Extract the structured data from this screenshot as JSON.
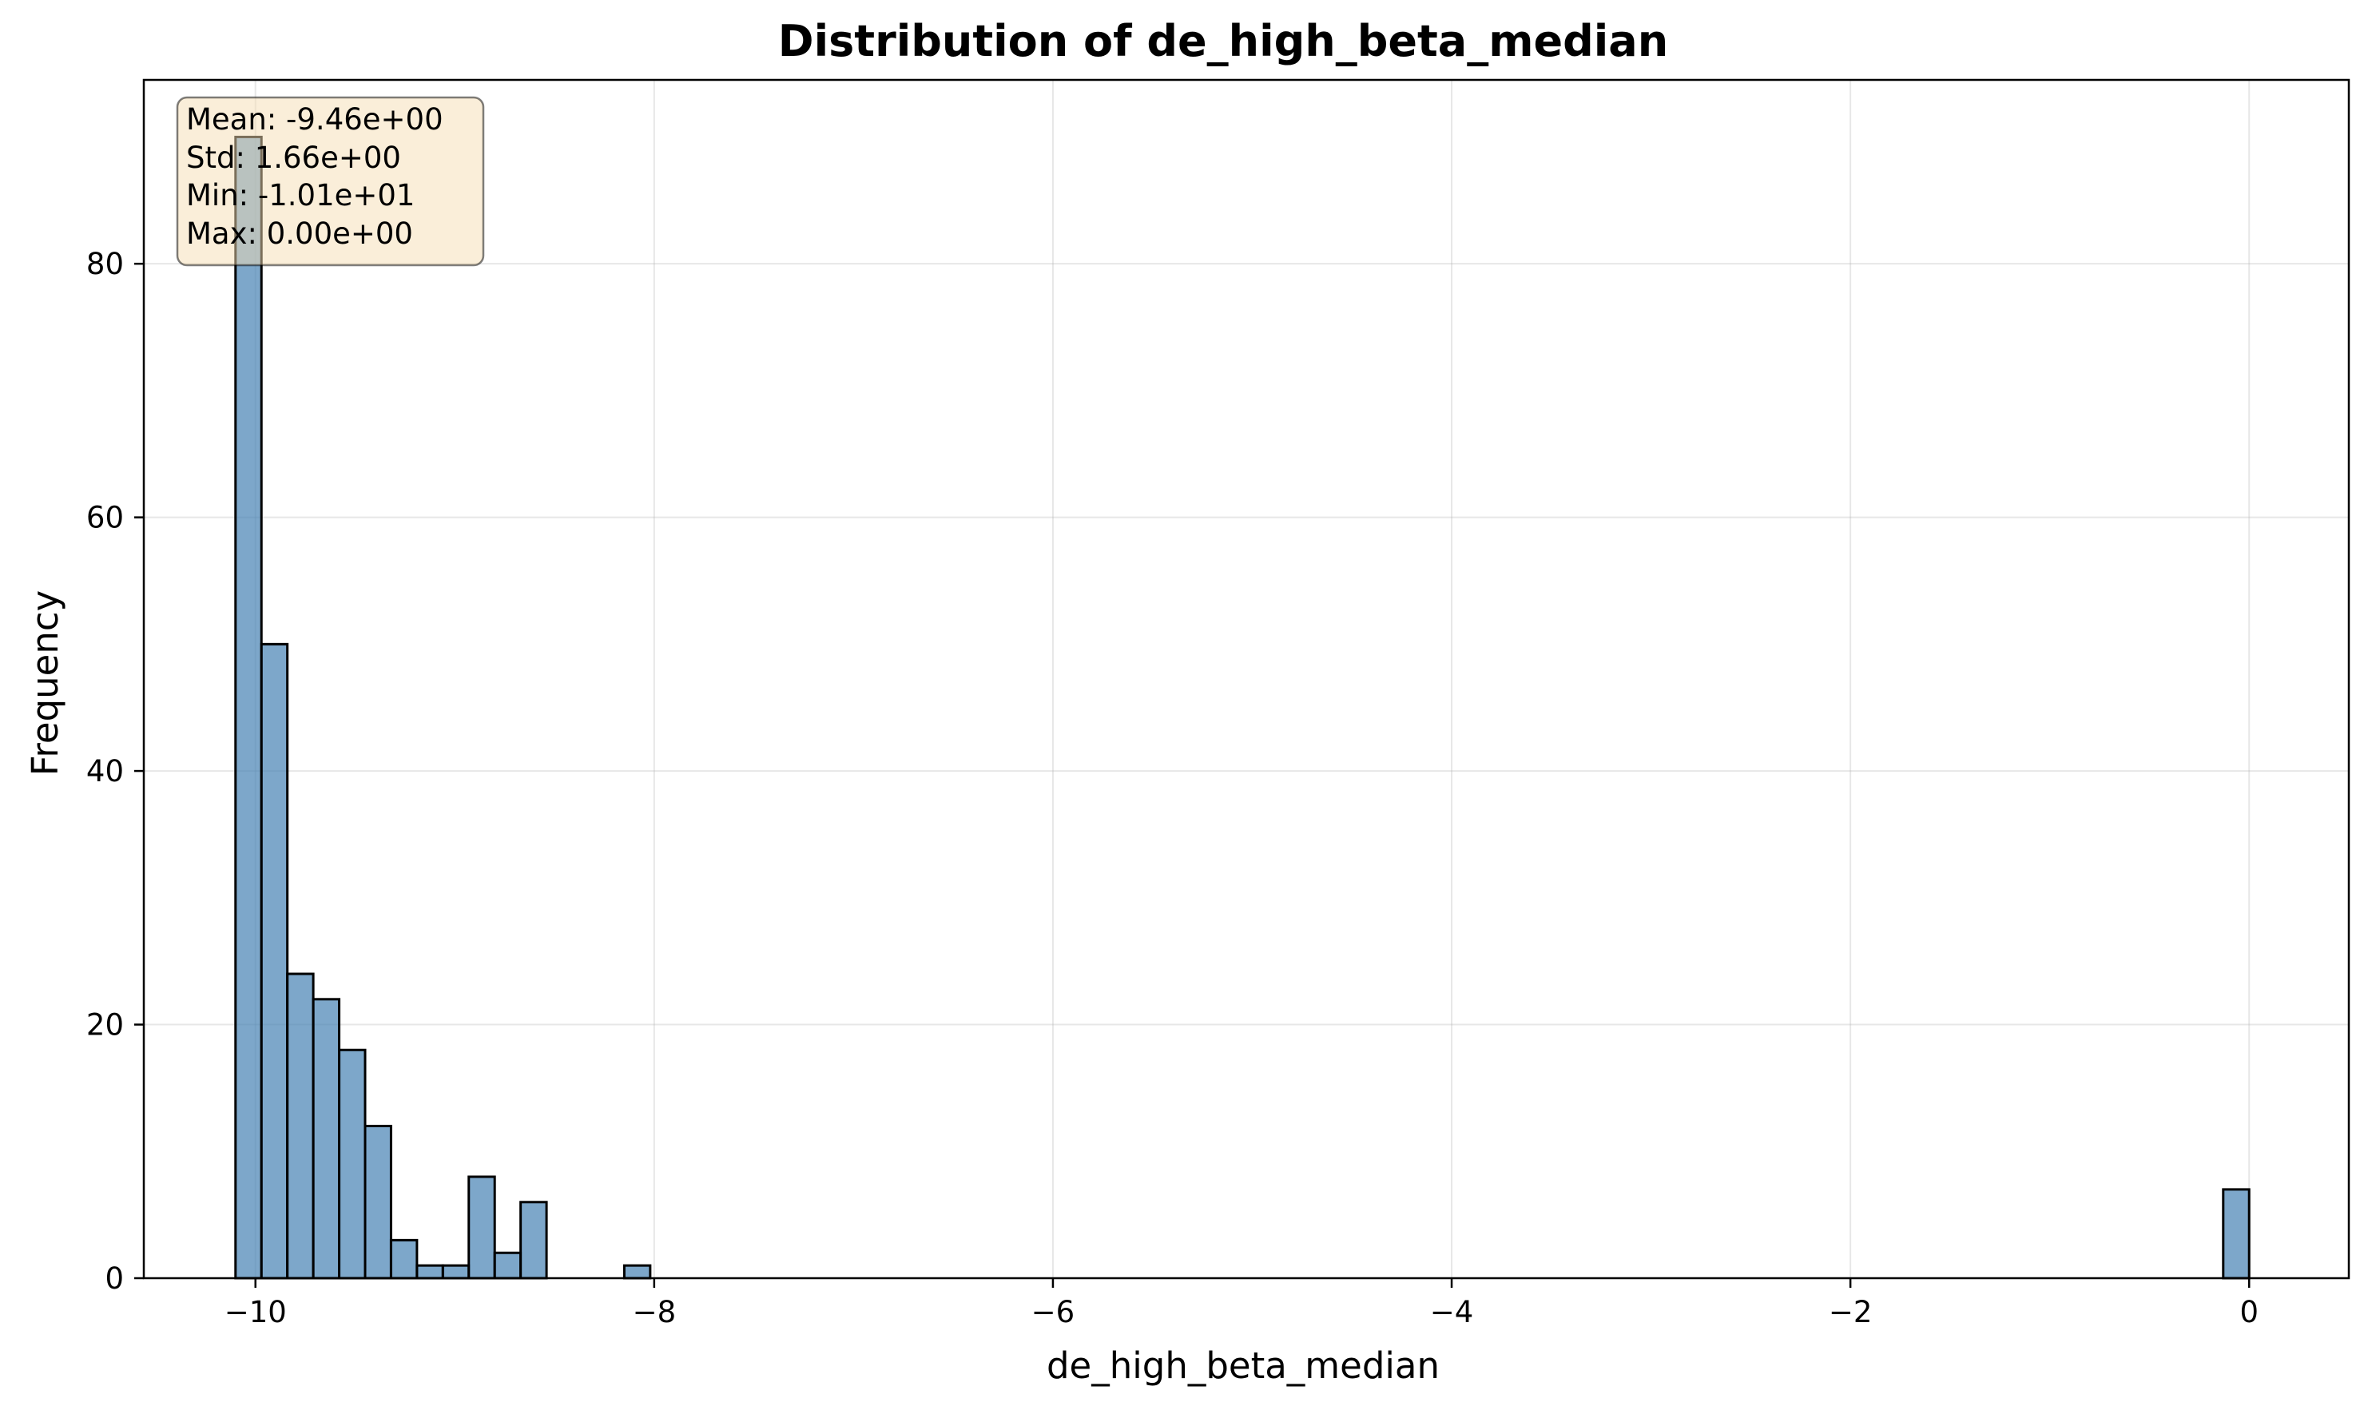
{
  "chart_data": {
    "type": "bar",
    "title": "Distribution of de_high_beta_median",
    "xlabel": "de_high_beta_median",
    "ylabel": "Frequency",
    "xlim": [
      -10.56,
      0.5
    ],
    "ylim": [
      0,
      94.5
    ],
    "xticks": [
      -10,
      -8,
      -6,
      -4,
      -2,
      0
    ],
    "xtick_labels": [
      "−10",
      "−8",
      "−6",
      "−4",
      "−2",
      "0"
    ],
    "yticks": [
      0,
      20,
      40,
      60,
      80
    ],
    "ytick_labels": [
      "0",
      "20",
      "40",
      "60",
      "80"
    ],
    "grid": true,
    "bar_color": "#4682b4",
    "bar_opacity": 0.7,
    "edge_color": "#000000",
    "bins": [
      {
        "x0": -10.1,
        "x1": -9.97,
        "count": 90
      },
      {
        "x0": -9.97,
        "x1": -9.84,
        "count": 50
      },
      {
        "x0": -9.84,
        "x1": -9.71,
        "count": 24
      },
      {
        "x0": -9.71,
        "x1": -9.58,
        "count": 22
      },
      {
        "x0": -9.58,
        "x1": -9.45,
        "count": 18
      },
      {
        "x0": -9.45,
        "x1": -9.32,
        "count": 12
      },
      {
        "x0": -9.32,
        "x1": -9.19,
        "count": 3
      },
      {
        "x0": -9.19,
        "x1": -9.06,
        "count": 1
      },
      {
        "x0": -9.06,
        "x1": -8.93,
        "count": 1
      },
      {
        "x0": -8.93,
        "x1": -8.8,
        "count": 8
      },
      {
        "x0": -8.8,
        "x1": -8.67,
        "count": 2
      },
      {
        "x0": -8.67,
        "x1": -8.54,
        "count": 6
      },
      {
        "x0": -8.15,
        "x1": -8.02,
        "count": 1
      },
      {
        "x0": -0.13,
        "x1": 0.0,
        "count": 7
      }
    ],
    "stats_box": {
      "lines": [
        "Mean: -9.46e+00",
        "Std: 1.66e+00",
        "Min: -1.01e+01",
        "Max: 0.00e+00"
      ],
      "placement": "top-left",
      "face_color": "#f5deb3",
      "edge_color": "#000000"
    }
  }
}
